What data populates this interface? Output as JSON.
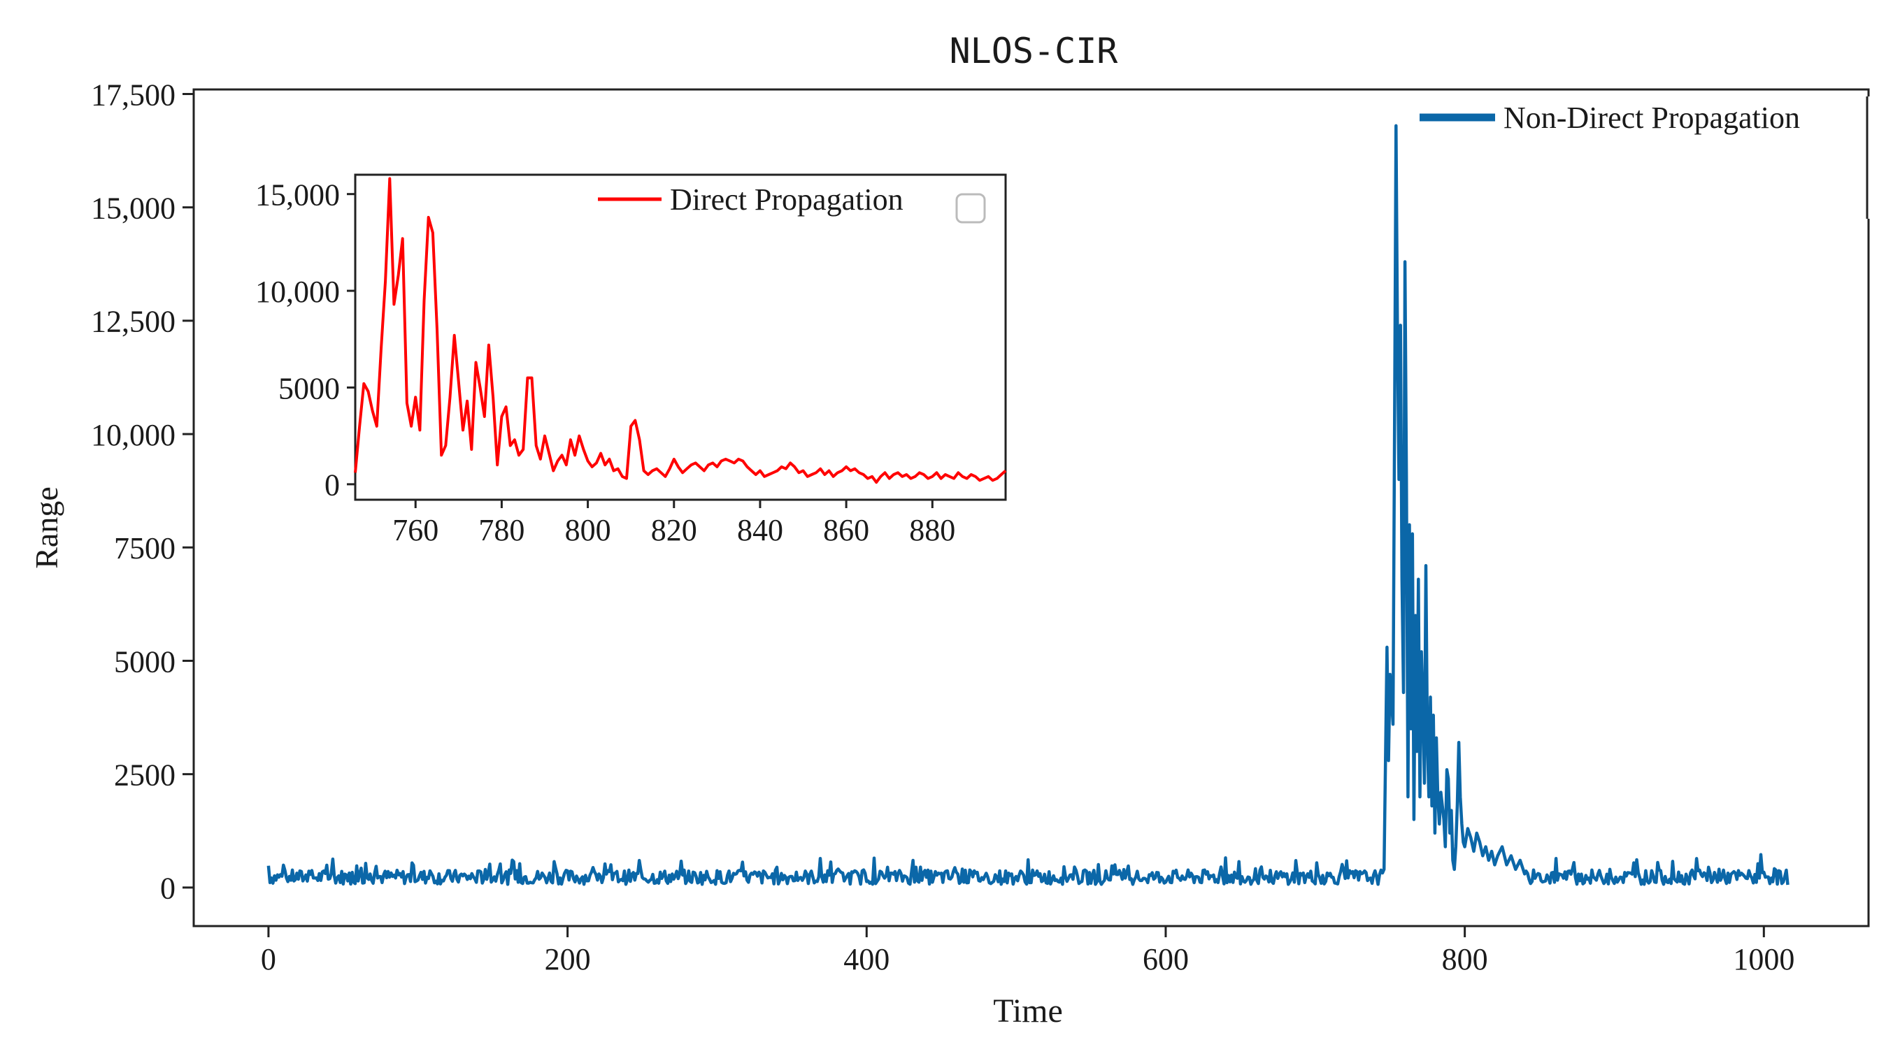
{
  "chart_data": [
    {
      "type": "line",
      "title": "NLOS-CIR",
      "xlabel": "Time",
      "ylabel": "Range",
      "xlim": [
        -50,
        1070
      ],
      "ylim": [
        -850,
        17600
      ],
      "xticks": [
        0,
        200,
        400,
        600,
        800,
        1000
      ],
      "xtick_labels": [
        "0",
        "200",
        "400",
        "600",
        "800",
        "1000"
      ],
      "yticks": [
        0,
        2500,
        5000,
        7500,
        10000,
        12500,
        15000,
        17500
      ],
      "ytick_labels": [
        "0",
        "2500",
        "5000",
        "7500",
        "10,000",
        "12,500",
        "15,000",
        "17,500"
      ],
      "grid": false,
      "legend_position": "top-right",
      "series": [
        {
          "name": "Non-Direct Propagation",
          "color": "#0b67a8",
          "noise_base": 230,
          "noise_amp": 160,
          "baseline_end": 745,
          "peaks": [
            [
              746,
              400
            ],
            [
              748,
              5300
            ],
            [
              749,
              2800
            ],
            [
              750,
              4700
            ],
            [
              752,
              3600
            ],
            [
              753,
              9800
            ],
            [
              754,
              16800
            ],
            [
              755,
              12200
            ],
            [
              756,
              9000
            ],
            [
              757,
              12400
            ],
            [
              758,
              6800
            ],
            [
              759,
              4300
            ],
            [
              760,
              13800
            ],
            [
              761,
              9000
            ],
            [
              762,
              2000
            ],
            [
              763,
              8000
            ],
            [
              764,
              3500
            ],
            [
              765,
              7800
            ],
            [
              766,
              1500
            ],
            [
              767,
              6000
            ],
            [
              768,
              3000
            ],
            [
              769,
              6800
            ],
            [
              770,
              2000
            ],
            [
              771,
              5200
            ],
            [
              772,
              4000
            ],
            [
              773,
              2300
            ],
            [
              774,
              7100
            ],
            [
              775,
              3200
            ],
            [
              776,
              2000
            ],
            [
              777,
              4200
            ],
            [
              778,
              1800
            ],
            [
              779,
              3800
            ],
            [
              780,
              1200
            ],
            [
              781,
              3300
            ],
            [
              782,
              2000
            ],
            [
              783,
              1400
            ],
            [
              784,
              2100
            ],
            [
              786,
              1500
            ],
            [
              787,
              900
            ],
            [
              788,
              2600
            ],
            [
              789,
              2400
            ],
            [
              790,
              1200
            ],
            [
              791,
              1700
            ],
            [
              792,
              600
            ],
            [
              793,
              400
            ],
            [
              794,
              900
            ],
            [
              795,
              1800
            ],
            [
              796,
              3200
            ],
            [
              797,
              2000
            ],
            [
              798,
              1400
            ],
            [
              799,
              1000
            ],
            [
              800,
              900
            ],
            [
              802,
              1300
            ],
            [
              804,
              1100
            ],
            [
              806,
              800
            ],
            [
              808,
              1200
            ],
            [
              810,
              1000
            ],
            [
              812,
              700
            ],
            [
              814,
              900
            ],
            [
              816,
              600
            ],
            [
              818,
              800
            ],
            [
              820,
              500
            ],
            [
              822,
              700
            ],
            [
              825,
              900
            ],
            [
              828,
              500
            ],
            [
              831,
              700
            ],
            [
              834,
              400
            ],
            [
              837,
              600
            ],
            [
              840,
              300
            ]
          ]
        }
      ],
      "inset": {
        "type": "line",
        "xlim": [
          746,
          897
        ],
        "ylim": [
          -800,
          16000
        ],
        "xticks": [
          760,
          780,
          800,
          820,
          840,
          860,
          880
        ],
        "xtick_labels": [
          "760",
          "780",
          "800",
          "820",
          "840",
          "860",
          "880"
        ],
        "yticks": [
          0,
          5000,
          10000,
          15000
        ],
        "ytick_labels": [
          "0",
          "5000",
          "10,000",
          "15,000"
        ],
        "legend_position": "top-right",
        "series": [
          {
            "name": "Direct Propagation",
            "color": "#ff0000",
            "points": [
              [
                746,
                600
              ],
              [
                747,
                3000
              ],
              [
                748,
                5200
              ],
              [
                749,
                4800
              ],
              [
                750,
                3800
              ],
              [
                751,
                3000
              ],
              [
                752,
                7000
              ],
              [
                753,
                10500
              ],
              [
                754,
                15800
              ],
              [
                755,
                9300
              ],
              [
                756,
                10800
              ],
              [
                757,
                12700
              ],
              [
                758,
                4200
              ],
              [
                759,
                3000
              ],
              [
                760,
                4500
              ],
              [
                761,
                2800
              ],
              [
                762,
                9500
              ],
              [
                763,
                13800
              ],
              [
                764,
                13000
              ],
              [
                765,
                8000
              ],
              [
                766,
                1500
              ],
              [
                767,
                2000
              ],
              [
                768,
                4500
              ],
              [
                769,
                7700
              ],
              [
                770,
                5300
              ],
              [
                771,
                2800
              ],
              [
                772,
                4300
              ],
              [
                773,
                1800
              ],
              [
                774,
                6300
              ],
              [
                775,
                5000
              ],
              [
                776,
                3500
              ],
              [
                777,
                7200
              ],
              [
                778,
                4500
              ],
              [
                779,
                1000
              ],
              [
                780,
                3500
              ],
              [
                781,
                4000
              ],
              [
                782,
                2000
              ],
              [
                783,
                2300
              ],
              [
                784,
                1500
              ],
              [
                785,
                1800
              ],
              [
                786,
                5500
              ],
              [
                787,
                5500
              ],
              [
                788,
                2000
              ],
              [
                789,
                1300
              ],
              [
                790,
                2500
              ],
              [
                791,
                1600
              ],
              [
                792,
                700
              ],
              [
                793,
                1200
              ],
              [
                794,
                1500
              ],
              [
                795,
                1000
              ],
              [
                796,
                2300
              ],
              [
                797,
                1500
              ],
              [
                798,
                2500
              ],
              [
                799,
                1800
              ],
              [
                800,
                1200
              ],
              [
                801,
                900
              ],
              [
                802,
                1100
              ],
              [
                803,
                1600
              ],
              [
                804,
                1000
              ],
              [
                805,
                1300
              ],
              [
                806,
                700
              ],
              [
                807,
                800
              ],
              [
                808,
                400
              ],
              [
                809,
                300
              ],
              [
                810,
                3000
              ],
              [
                811,
                3300
              ],
              [
                812,
                2300
              ],
              [
                813,
                700
              ],
              [
                814,
                500
              ],
              [
                815,
                700
              ],
              [
                816,
                800
              ],
              [
                817,
                600
              ],
              [
                818,
                400
              ],
              [
                819,
                800
              ],
              [
                820,
                1300
              ],
              [
                821,
                900
              ],
              [
                822,
                600
              ],
              [
                823,
                800
              ],
              [
                824,
                1000
              ],
              [
                825,
                1100
              ],
              [
                826,
                900
              ],
              [
                827,
                700
              ],
              [
                828,
                1000
              ],
              [
                829,
                1100
              ],
              [
                830,
                900
              ],
              [
                831,
                1200
              ],
              [
                832,
                1300
              ],
              [
                833,
                1200
              ],
              [
                834,
                1100
              ],
              [
                835,
                1300
              ],
              [
                836,
                1200
              ],
              [
                837,
                900
              ],
              [
                838,
                700
              ],
              [
                839,
                500
              ],
              [
                840,
                700
              ],
              [
                841,
                400
              ],
              [
                842,
                500
              ],
              [
                843,
                600
              ],
              [
                844,
                700
              ],
              [
                845,
                900
              ],
              [
                846,
                800
              ],
              [
                847,
                1100
              ],
              [
                848,
                900
              ],
              [
                849,
                600
              ],
              [
                850,
                700
              ],
              [
                851,
                400
              ],
              [
                852,
                500
              ],
              [
                853,
                600
              ],
              [
                854,
                800
              ],
              [
                855,
                500
              ],
              [
                856,
                700
              ],
              [
                857,
                400
              ],
              [
                858,
                600
              ],
              [
                859,
                700
              ],
              [
                860,
                900
              ],
              [
                861,
                700
              ],
              [
                862,
                800
              ],
              [
                863,
                600
              ],
              [
                864,
                500
              ],
              [
                865,
                300
              ],
              [
                866,
                400
              ],
              [
                867,
                100
              ],
              [
                868,
                400
              ],
              [
                869,
                600
              ],
              [
                870,
                300
              ],
              [
                871,
                500
              ],
              [
                872,
                600
              ],
              [
                873,
                400
              ],
              [
                874,
                500
              ],
              [
                875,
                300
              ],
              [
                876,
                400
              ],
              [
                877,
                600
              ],
              [
                878,
                500
              ],
              [
                879,
                300
              ],
              [
                880,
                400
              ],
              [
                881,
                600
              ],
              [
                882,
                300
              ],
              [
                883,
                500
              ],
              [
                884,
                400
              ],
              [
                885,
                300
              ],
              [
                886,
                600
              ],
              [
                887,
                400
              ],
              [
                888,
                300
              ],
              [
                889,
                500
              ],
              [
                890,
                400
              ],
              [
                891,
                200
              ],
              [
                892,
                300
              ],
              [
                893,
                400
              ],
              [
                894,
                200
              ],
              [
                895,
                300
              ],
              [
                896,
                500
              ],
              [
                897,
                700
              ]
            ]
          }
        ]
      }
    }
  ]
}
